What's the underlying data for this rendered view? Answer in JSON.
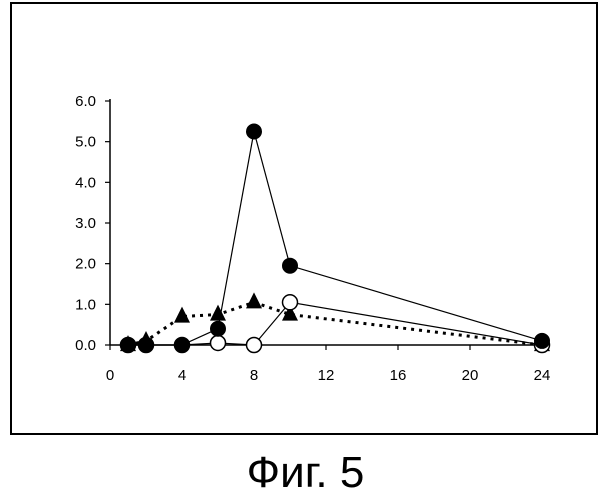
{
  "caption": "Фиг. 5",
  "chart_data": {
    "type": "line",
    "title": "",
    "xlabel": "",
    "ylabel": "",
    "xlim": [
      0,
      24
    ],
    "ylim": [
      0,
      6.0
    ],
    "x_ticks": [
      0,
      4,
      8,
      12,
      16,
      20,
      24
    ],
    "x_tick_labels": [
      "0",
      "4",
      "8",
      "12",
      "16",
      "20",
      "24"
    ],
    "y_ticks": [
      0,
      1,
      2,
      3,
      4,
      5,
      6
    ],
    "y_tick_labels": [
      "0.0",
      "1.0",
      "2.0",
      "3.0",
      "4.0",
      "5.0",
      "6.0"
    ],
    "grid": false,
    "legend": "none",
    "series": [
      {
        "marker": "filled-circle",
        "line": "solid",
        "color": "#000000",
        "x": [
          1,
          2,
          4,
          6,
          8,
          10,
          24
        ],
        "y": [
          0,
          0,
          0,
          0.4,
          5.25,
          1.95,
          0.1
        ]
      },
      {
        "marker": "open-circle",
        "line": "solid",
        "color": "#000000",
        "x": [
          1,
          2,
          4,
          6,
          8,
          10,
          24
        ],
        "y": [
          0,
          0,
          0,
          0.05,
          0,
          1.05,
          0
        ]
      },
      {
        "marker": "filled-triangle",
        "line": "dotted",
        "color": "#000000",
        "x": [
          1,
          2,
          4,
          6,
          8,
          10,
          24
        ],
        "y": [
          0,
          0.1,
          0.7,
          0.75,
          1.05,
          0.75,
          0
        ]
      }
    ]
  }
}
